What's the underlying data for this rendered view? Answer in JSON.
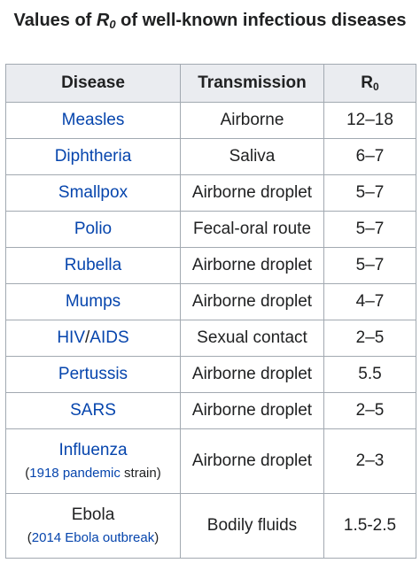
{
  "caption": {
    "prefix": "Values of ",
    "r_letter": "R",
    "r_sub": "0",
    "suffix": " of well-known infectious diseases"
  },
  "table": {
    "headers": {
      "disease": "Disease",
      "transmission": "Transmission",
      "r0_letter": "R",
      "r0_sub": "0"
    },
    "rows": [
      {
        "disease": "Measles",
        "transmission": "Airborne",
        "r0": "12–18"
      },
      {
        "disease": "Diphtheria",
        "transmission": "Saliva",
        "r0": "6–7"
      },
      {
        "disease": "Smallpox",
        "transmission": "Airborne droplet",
        "r0": "5–7"
      },
      {
        "disease": "Polio",
        "transmission": "Fecal-oral route",
        "r0": "5–7"
      },
      {
        "disease": "Rubella",
        "transmission": "Airborne droplet",
        "r0": "5–7"
      },
      {
        "disease": "Mumps",
        "transmission": "Airborne droplet",
        "r0": "4–7"
      },
      {
        "disease_part1": "HIV",
        "disease_sep": "/",
        "disease_part2": "AIDS",
        "transmission": "Sexual contact",
        "r0": "2–5"
      },
      {
        "disease": "Pertussis",
        "transmission": "Airborne droplet",
        "r0": "5.5"
      },
      {
        "disease": "SARS",
        "transmission": "Airborne droplet",
        "r0": "2–5"
      },
      {
        "disease": "Influenza",
        "note_open": "(",
        "note_link": "1918 pandemic",
        "note_rest": " strain)",
        "transmission": "Airborne droplet",
        "r0": "2–3"
      },
      {
        "disease": "Ebola",
        "note_open": "(",
        "note_link": "2014 Ebola outbreak",
        "note_rest": ")",
        "transmission": "Bodily fluids",
        "r0": "1.5-2.5"
      }
    ]
  },
  "colors": {
    "link": "#0645ad",
    "header_bg": "#eaecf0",
    "border": "#a2a9b1",
    "text": "#202122"
  }
}
